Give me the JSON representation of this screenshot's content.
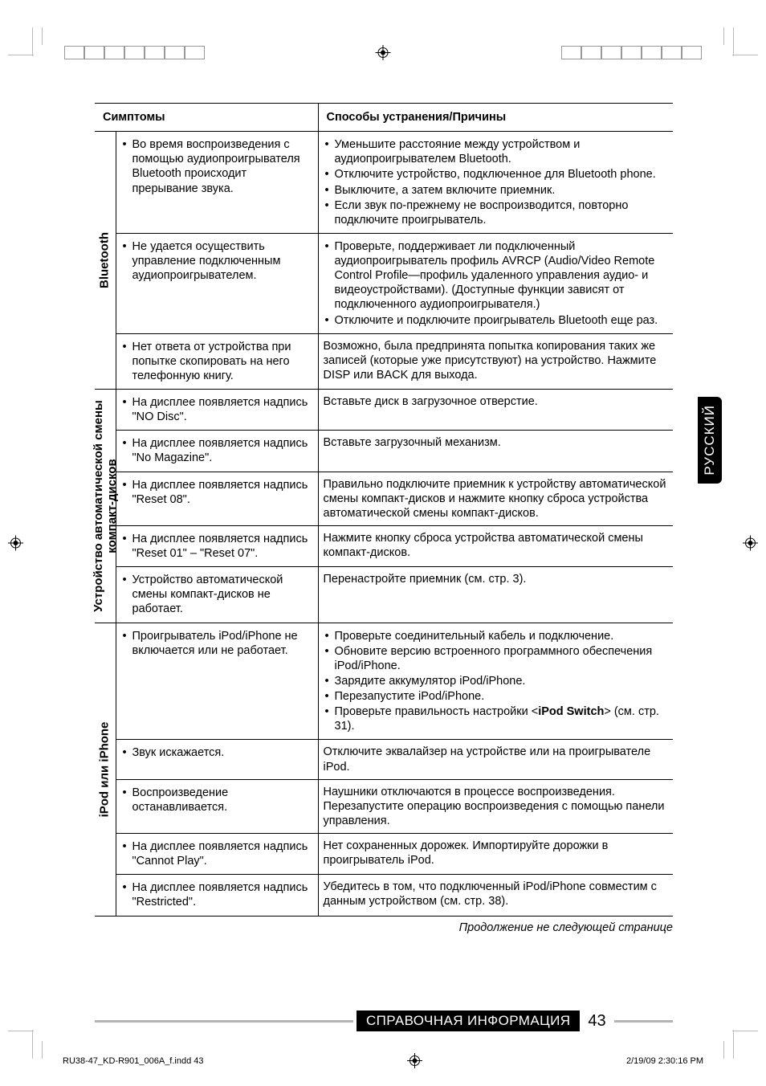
{
  "printer_marks": {
    "color_bar_left": [
      "#000000",
      "#2b2b2b",
      "#555555",
      "#808080",
      "#aaaaaa",
      "#d4d4d4",
      "#ffffff"
    ],
    "color_bar_right": [
      "#808080",
      "#2b2b2b",
      "#555555",
      "#808080",
      "#aaaaaa",
      "#ffffff",
      "#d4d4d4"
    ],
    "swatch_border": "#999999"
  },
  "lang_tab": "РУССКИЙ",
  "table": {
    "header_symptoms": "Симптомы",
    "header_remedies": "Способы устранения/Причины",
    "groups": [
      {
        "label": "Bluetooth",
        "rows": [
          {
            "symptoms": [
              "Во время воспроизведения с помощью аудиопроигрывателя Bluetooth происходит прерывание звука."
            ],
            "remedies": [
              "Уменьшите расстояние между устройством и аудиопроигрывателем Bluetooth.",
              "Отключите устройство, подключенное для Bluetooth phone.",
              "Выключите, а затем включите приемник.",
              "Если звук по-прежнему не воспроизводится, повторно подключите проигрыватель."
            ]
          },
          {
            "symptoms": [
              "Не удается осуществить управление подключенным аудиопроигрывателем."
            ],
            "remedies": [
              "Проверьте, поддерживает ли подключенный аудиопроигрыватель профиль AVRCP (Audio/Video Remote Control Profile—профиль удаленного управления аудио- и видеоустройствами). (Доступные функции зависят от подключенного аудиопроигрывателя.)",
              "Отключите и подключите проигрыватель Bluetooth еще раз."
            ]
          },
          {
            "symptoms": [
              "Нет ответа от устройства при попытке скопировать на него телефонную книгу."
            ],
            "remedy_text": "Возможно, была предпринята попытка копирования таких же записей (которые уже присутствуют) на устройство. Нажмите DISP или BACK для выхода."
          }
        ]
      },
      {
        "label_line1": "Устройство автоматической смены",
        "label_line2": "компакт-дисков",
        "rows": [
          {
            "symptoms": [
              "На дисплее появляется надпись \"NO Disc\"."
            ],
            "remedy_text": "Вставьте диск в загрузочное отверстие."
          },
          {
            "symptoms": [
              "На дисплее появляется надпись \"No Magazine\"."
            ],
            "remedy_text": "Вставьте загрузочный механизм."
          },
          {
            "symptoms": [
              "На дисплее появляется надпись \"Reset 08\"."
            ],
            "remedy_text": "Правильно подключите приемник к устройству автоматической смены компакт-дисков и нажмите кнопку сброса устройства автоматической смены компакт-дисков."
          },
          {
            "symptoms": [
              "На дисплее появляется надпись \"Reset 01\" – \"Reset 07\"."
            ],
            "remedy_text": "Нажмите кнопку сброса устройства автоматической смены компакт-дисков."
          },
          {
            "symptoms": [
              "Устройство автоматической смены компакт-дисков не работает."
            ],
            "remedy_text": "Перенастройте приемник (см. стр. 3)."
          }
        ]
      },
      {
        "label": "iPod или iPhone",
        "rows": [
          {
            "symptoms": [
              "Проигрыватель iPod/iPhone не включается или не работает."
            ],
            "remedies": [
              "Проверьте соединительный кабель и подключение.",
              "Обновите версию встроенного программного обеспечения iPod/iPhone.",
              "Зарядите аккумулятор iPod/iPhone.",
              "Перезапустите iPod/iPhone.",
              "Проверьте правильность настройки <<b>iPod Switch</b>> (см. стр. 31)."
            ],
            "remedies_has_html": true
          },
          {
            "symptoms": [
              "Звук искажается."
            ],
            "remedy_text": "Отключите эквалайзер на устройстве или на проигрывателе iPod."
          },
          {
            "symptoms": [
              "Воспроизведение останавливается."
            ],
            "remedy_text": "Наушники отключаются в процессе воспроизведения. Перезапустите операцию воспроизведения с помощью панели управления."
          },
          {
            "symptoms": [
              "На дисплее появляется надпись \"Cannot Play\"."
            ],
            "remedy_text": "Нет сохраненных дорожек. Импортируйте дорожки в проигрыватель iPod."
          },
          {
            "symptoms": [
              "На дисплее появляется надпись \"Restricted\"."
            ],
            "remedy_text": "Убедитесь в том, что подключенный iPod/iPhone совместим с данным устройством (см. стр. 38)."
          }
        ]
      }
    ]
  },
  "continuation_note": "Продолжение не следующей странице",
  "footer": {
    "section": "СПРАВОЧНАЯ ИНФОРМАЦИЯ",
    "page_number": "43"
  },
  "indd": {
    "file": "RU38-47_KD-R901_006A_f.indd   43",
    "timestamp": "2/19/09   2:30:16 PM"
  }
}
